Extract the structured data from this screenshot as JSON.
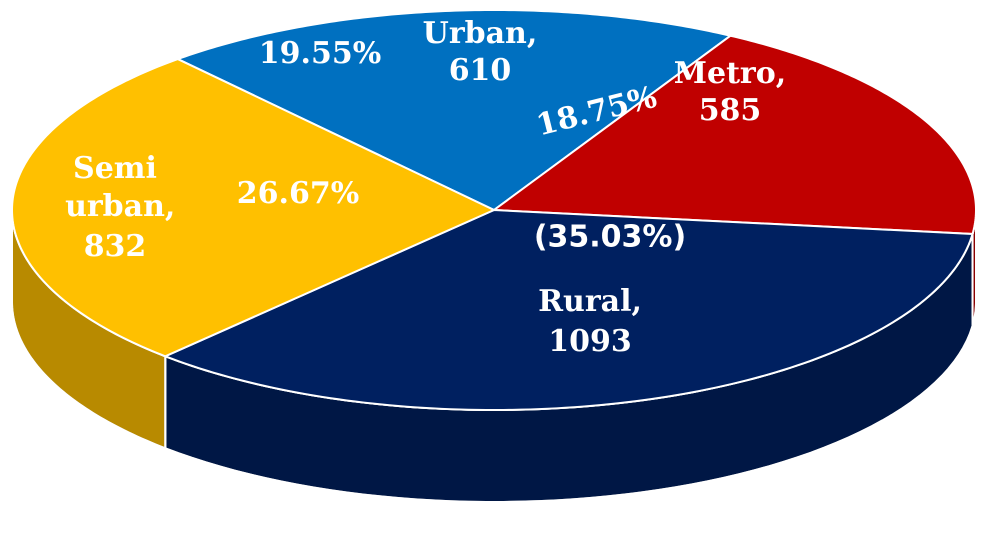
{
  "chart_data": {
    "type": "pie3d",
    "categories": [
      "Urban,",
      "Metro,",
      "Rural,",
      "Semi urban,"
    ],
    "values": [
      610,
      585,
      1093,
      832
    ],
    "percent_labels": [
      "19.55%",
      "18.75%",
      "(35.03%)",
      "26.67%"
    ],
    "colors": [
      "#0070c0",
      "#c00000",
      "#002060",
      "#ffc000"
    ]
  }
}
